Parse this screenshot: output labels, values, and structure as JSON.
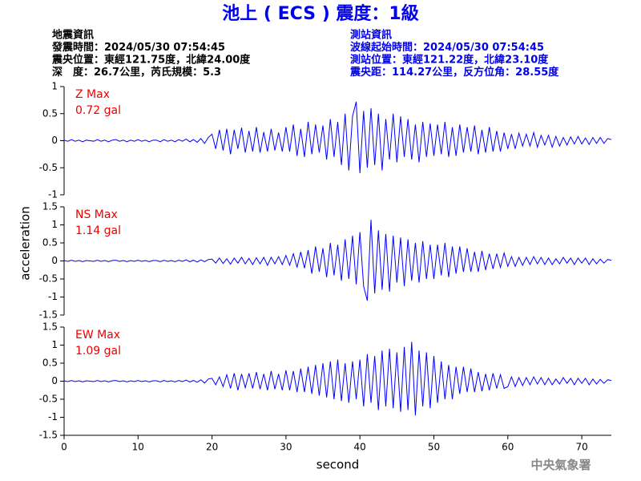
{
  "header": {
    "title": "池上 ( ECS ) 震度：1級",
    "left": [
      "地震資訊",
      "發震時間：2024/05/30 07:54:45",
      "震央位置：東經121.75度，北緯24.00度",
      "深　度：26.7公里，芮氏規模：5.3"
    ],
    "right": [
      "測站資訊",
      "波線起始時間：2024/05/30 07:54:45",
      "測站位置：東經121.22度，北緯23.10度",
      "震央距：114.27公里，反方位角：28.55度"
    ]
  },
  "footer": "中央氣象署",
  "chart_data": [
    {
      "type": "line",
      "label": "Z Max",
      "max_label": "0.72 gal",
      "xlim": [
        0,
        74
      ],
      "ylim": [
        -1,
        1
      ],
      "yticks": [
        1,
        0.5,
        0,
        -0.5,
        -1
      ],
      "x": [
        0,
        0.5,
        1,
        1.5,
        2,
        2.5,
        3,
        3.5,
        4,
        4.5,
        5,
        5.5,
        6,
        6.5,
        7,
        7.5,
        8,
        8.5,
        9,
        9.5,
        10,
        10.5,
        11,
        11.5,
        12,
        12.5,
        13,
        13.5,
        14,
        14.5,
        15,
        15.5,
        16,
        16.5,
        17,
        17.5,
        18,
        18.5,
        19,
        19.5,
        20,
        20.5,
        21,
        21.5,
        22,
        22.5,
        23,
        23.5,
        24,
        24.5,
        25,
        25.5,
        26,
        26.5,
        27,
        27.5,
        28,
        28.5,
        29,
        29.5,
        30,
        30.5,
        31,
        31.5,
        32,
        32.5,
        33,
        33.5,
        34,
        34.5,
        35,
        35.5,
        36,
        36.5,
        37,
        37.5,
        38,
        38.5,
        39,
        39.5,
        40,
        40.5,
        41,
        41.5,
        42,
        42.5,
        43,
        43.5,
        44,
        44.5,
        45,
        45.5,
        46,
        46.5,
        47,
        47.5,
        48,
        48.5,
        49,
        49.5,
        50,
        50.5,
        51,
        51.5,
        52,
        52.5,
        53,
        53.5,
        54,
        54.5,
        55,
        55.5,
        56,
        56.5,
        57,
        57.5,
        58,
        58.5,
        59,
        59.5,
        60,
        60.5,
        61,
        61.5,
        62,
        62.5,
        63,
        63.5,
        64,
        64.5,
        65,
        65.5,
        66,
        66.5,
        67,
        67.5,
        68,
        68.5,
        69,
        69.5,
        70,
        70.5,
        71,
        71.5,
        72,
        72.5,
        73,
        73.5,
        74
      ],
      "series": [
        {
          "color": "#0000ff",
          "values": [
            0.01,
            -0.01,
            0.02,
            -0.01,
            0.01,
            -0.02,
            0.01,
            0,
            -0.01,
            0.02,
            -0.01,
            0.01,
            -0.02,
            0.01,
            0.02,
            -0.01,
            0.01,
            -0.02,
            0.01,
            -0.01,
            0.02,
            -0.01,
            0.01,
            -0.02,
            0.01,
            0.01,
            -0.02,
            0.02,
            -0.01,
            0.01,
            -0.02,
            0.02,
            -0.01,
            0.03,
            -0.02,
            0.02,
            -0.03,
            0.04,
            -0.05,
            0.06,
            0.12,
            -0.15,
            0.2,
            -0.18,
            0.22,
            -0.25,
            0.2,
            -0.15,
            0.24,
            -0.22,
            0.18,
            -0.2,
            0.25,
            -0.22,
            0.16,
            -0.2,
            0.22,
            -0.18,
            0.15,
            -0.2,
            0.25,
            -0.2,
            0.3,
            -0.28,
            0.22,
            -0.3,
            0.35,
            -0.25,
            0.3,
            -0.22,
            0.28,
            -0.35,
            0.4,
            -0.3,
            0.35,
            -0.45,
            0.5,
            -0.55,
            0.45,
            0.72,
            -0.6,
            0.55,
            -0.5,
            0.6,
            -0.45,
            0.5,
            -0.55,
            0.4,
            -0.35,
            0.5,
            -0.4,
            0.45,
            -0.3,
            0.4,
            -0.35,
            0.3,
            -0.4,
            0.35,
            -0.3,
            0.32,
            -0.28,
            0.3,
            -0.25,
            0.35,
            -0.3,
            0.25,
            -0.28,
            0.3,
            -0.22,
            0.25,
            -0.2,
            0.28,
            -0.25,
            0.2,
            -0.22,
            0.25,
            -0.2,
            0.18,
            -0.2,
            0.15,
            -0.15,
            0.12,
            -0.15,
            0.14,
            -0.1,
            0.12,
            -0.1,
            0.15,
            -0.12,
            0.1,
            -0.08,
            0.1,
            -0.12,
            0.08,
            -0.1,
            0.06,
            -0.08,
            0.07,
            -0.06,
            0.08,
            -0.06,
            0.05,
            -0.07,
            0.06,
            -0.05,
            0.06,
            -0.05,
            0.04,
            0.02
          ]
        }
      ]
    },
    {
      "type": "line",
      "label": "NS Max",
      "max_label": "1.14 gal",
      "ylabel": "acceleration",
      "xlim": [
        0,
        74
      ],
      "ylim": [
        -1.5,
        1.5
      ],
      "yticks": [
        1.5,
        1,
        0.5,
        0,
        -0.5,
        -1,
        -1.5
      ],
      "x": [
        0,
        0.5,
        1,
        1.5,
        2,
        2.5,
        3,
        3.5,
        4,
        4.5,
        5,
        5.5,
        6,
        6.5,
        7,
        7.5,
        8,
        8.5,
        9,
        9.5,
        10,
        10.5,
        11,
        11.5,
        12,
        12.5,
        13,
        13.5,
        14,
        14.5,
        15,
        15.5,
        16,
        16.5,
        17,
        17.5,
        18,
        18.5,
        19,
        19.5,
        20,
        20.5,
        21,
        21.5,
        22,
        22.5,
        23,
        23.5,
        24,
        24.5,
        25,
        25.5,
        26,
        26.5,
        27,
        27.5,
        28,
        28.5,
        29,
        29.5,
        30,
        30.5,
        31,
        31.5,
        32,
        32.5,
        33,
        33.5,
        34,
        34.5,
        35,
        35.5,
        36,
        36.5,
        37,
        37.5,
        38,
        38.5,
        39,
        39.5,
        40,
        40.5,
        41,
        41.5,
        42,
        42.5,
        43,
        43.5,
        44,
        44.5,
        45,
        45.5,
        46,
        46.5,
        47,
        47.5,
        48,
        48.5,
        49,
        49.5,
        50,
        50.5,
        51,
        51.5,
        52,
        52.5,
        53,
        53.5,
        54,
        54.5,
        55,
        55.5,
        56,
        56.5,
        57,
        57.5,
        58,
        58.5,
        59,
        59.5,
        60,
        60.5,
        61,
        61.5,
        62,
        62.5,
        63,
        63.5,
        64,
        64.5,
        65,
        65.5,
        66,
        66.5,
        67,
        67.5,
        68,
        68.5,
        69,
        69.5,
        70,
        70.5,
        71,
        71.5,
        72,
        72.5,
        73,
        73.5,
        74
      ],
      "series": [
        {
          "color": "#0000ff",
          "values": [
            0.01,
            -0.01,
            0.02,
            -0.01,
            0.01,
            -0.02,
            0.01,
            0,
            -0.01,
            0.02,
            -0.01,
            0.01,
            -0.02,
            0.01,
            0.02,
            -0.01,
            0.01,
            -0.02,
            0.01,
            -0.01,
            0.02,
            -0.01,
            0.01,
            -0.02,
            0.01,
            0.01,
            -0.02,
            0.02,
            -0.01,
            0.01,
            -0.02,
            0.02,
            -0.01,
            0.03,
            -0.02,
            0.02,
            -0.03,
            0.03,
            -0.02,
            0.04,
            0.05,
            -0.06,
            0.08,
            -0.07,
            0.06,
            -0.09,
            0.08,
            -0.06,
            0.1,
            -0.08,
            0.07,
            -0.1,
            0.09,
            -0.08,
            0.1,
            -0.12,
            0.1,
            -0.08,
            0.12,
            -0.1,
            0.15,
            -0.12,
            0.2,
            -0.18,
            0.25,
            -0.2,
            0.3,
            -0.35,
            0.4,
            -0.3,
            0.35,
            -0.45,
            0.5,
            -0.4,
            0.45,
            -0.55,
            0.6,
            -0.5,
            0.7,
            -0.65,
            0.8,
            -0.7,
            -1.1,
            1.14,
            -0.9,
            0.85,
            -0.8,
            0.75,
            -0.85,
            0.7,
            -0.6,
            0.65,
            -0.7,
            0.6,
            -0.55,
            0.5,
            -0.6,
            0.55,
            -0.5,
            0.45,
            -0.5,
            0.45,
            -0.4,
            0.5,
            -0.45,
            0.4,
            -0.35,
            0.4,
            -0.3,
            0.35,
            -0.3,
            0.25,
            -0.3,
            0.28,
            -0.25,
            0.2,
            -0.22,
            0.2,
            -0.18,
            0.22,
            -0.15,
            0.12,
            -0.15,
            0.1,
            -0.12,
            0.1,
            -0.1,
            0.12,
            -0.08,
            0.1,
            -0.1,
            0.08,
            -0.1,
            0.06,
            -0.08,
            0.1,
            -0.06,
            0.08,
            -0.1,
            0.08,
            -0.06,
            0.08,
            -0.1,
            0.06,
            -0.08,
            0.05,
            -0.06,
            0.04,
            0.02
          ]
        }
      ]
    },
    {
      "type": "line",
      "label": "EW Max",
      "max_label": "1.09 gal",
      "xlabel": "second",
      "xlim": [
        0,
        74
      ],
      "xticks": [
        0,
        10,
        20,
        30,
        40,
        50,
        60,
        70
      ],
      "ylim": [
        -1.5,
        1.5
      ],
      "yticks": [
        1.5,
        1,
        0.5,
        0,
        -0.5,
        -1,
        -1.5
      ],
      "x": [
        0,
        0.5,
        1,
        1.5,
        2,
        2.5,
        3,
        3.5,
        4,
        4.5,
        5,
        5.5,
        6,
        6.5,
        7,
        7.5,
        8,
        8.5,
        9,
        9.5,
        10,
        10.5,
        11,
        11.5,
        12,
        12.5,
        13,
        13.5,
        14,
        14.5,
        15,
        15.5,
        16,
        16.5,
        17,
        17.5,
        18,
        18.5,
        19,
        19.5,
        20,
        20.5,
        21,
        21.5,
        22,
        22.5,
        23,
        23.5,
        24,
        24.5,
        25,
        25.5,
        26,
        26.5,
        27,
        27.5,
        28,
        28.5,
        29,
        29.5,
        30,
        30.5,
        31,
        31.5,
        32,
        32.5,
        33,
        33.5,
        34,
        34.5,
        35,
        35.5,
        36,
        36.5,
        37,
        37.5,
        38,
        38.5,
        39,
        39.5,
        40,
        40.5,
        41,
        41.5,
        42,
        42.5,
        43,
        43.5,
        44,
        44.5,
        45,
        45.5,
        46,
        46.5,
        47,
        47.5,
        48,
        48.5,
        49,
        49.5,
        50,
        50.5,
        51,
        51.5,
        52,
        52.5,
        53,
        53.5,
        54,
        54.5,
        55,
        55.5,
        56,
        56.5,
        57,
        57.5,
        58,
        58.5,
        59,
        59.5,
        60,
        60.5,
        61,
        61.5,
        62,
        62.5,
        63,
        63.5,
        64,
        64.5,
        65,
        65.5,
        66,
        66.5,
        67,
        67.5,
        68,
        68.5,
        69,
        69.5,
        70,
        70.5,
        71,
        71.5,
        72,
        72.5,
        73,
        73.5,
        74
      ],
      "series": [
        {
          "color": "#0000ff",
          "values": [
            0.01,
            -0.01,
            0.02,
            -0.01,
            0.01,
            -0.02,
            0.01,
            0,
            -0.01,
            0.02,
            -0.01,
            0.01,
            -0.02,
            0.01,
            0.02,
            -0.01,
            0.01,
            -0.02,
            0.01,
            -0.01,
            0.02,
            -0.01,
            0.01,
            -0.02,
            0.01,
            0.01,
            -0.02,
            0.02,
            -0.01,
            0.01,
            -0.02,
            0.02,
            -0.01,
            0.03,
            -0.02,
            0.02,
            -0.03,
            0.04,
            -0.05,
            0.06,
            0.08,
            -0.1,
            0.12,
            -0.15,
            0.18,
            -0.2,
            0.22,
            -0.25,
            0.2,
            -0.18,
            0.22,
            -0.2,
            0.25,
            -0.22,
            0.2,
            -0.25,
            0.28,
            -0.22,
            0.2,
            -0.25,
            0.3,
            -0.25,
            0.28,
            -0.3,
            0.35,
            -0.3,
            0.4,
            -0.35,
            0.45,
            -0.4,
            0.5,
            -0.45,
            0.55,
            -0.5,
            0.6,
            -0.55,
            0.5,
            -0.6,
            0.55,
            -0.5,
            0.6,
            -0.7,
            0.75,
            -0.6,
            0.7,
            -0.8,
            0.85,
            -0.7,
            0.9,
            -0.75,
            0.8,
            -0.85,
            0.95,
            -0.8,
            1.09,
            -0.95,
            0.85,
            -0.7,
            0.8,
            -0.75,
            0.7,
            -0.6,
            0.55,
            -0.5,
            0.45,
            -0.5,
            0.4,
            -0.35,
            0.4,
            -0.3,
            0.35,
            -0.3,
            0.25,
            -0.28,
            0.2,
            -0.25,
            0.22,
            -0.2,
            0.18,
            -0.2,
            -0.15,
            0.12,
            -0.15,
            0.1,
            -0.12,
            0.1,
            -0.1,
            0.12,
            -0.08,
            0.1,
            -0.1,
            0.08,
            -0.1,
            0.06,
            -0.08,
            0.1,
            -0.06,
            0.08,
            -0.1,
            0.08,
            -0.06,
            0.08,
            -0.1,
            0.06,
            -0.08,
            0.05,
            -0.06,
            0.04,
            0.02
          ]
        }
      ]
    }
  ]
}
